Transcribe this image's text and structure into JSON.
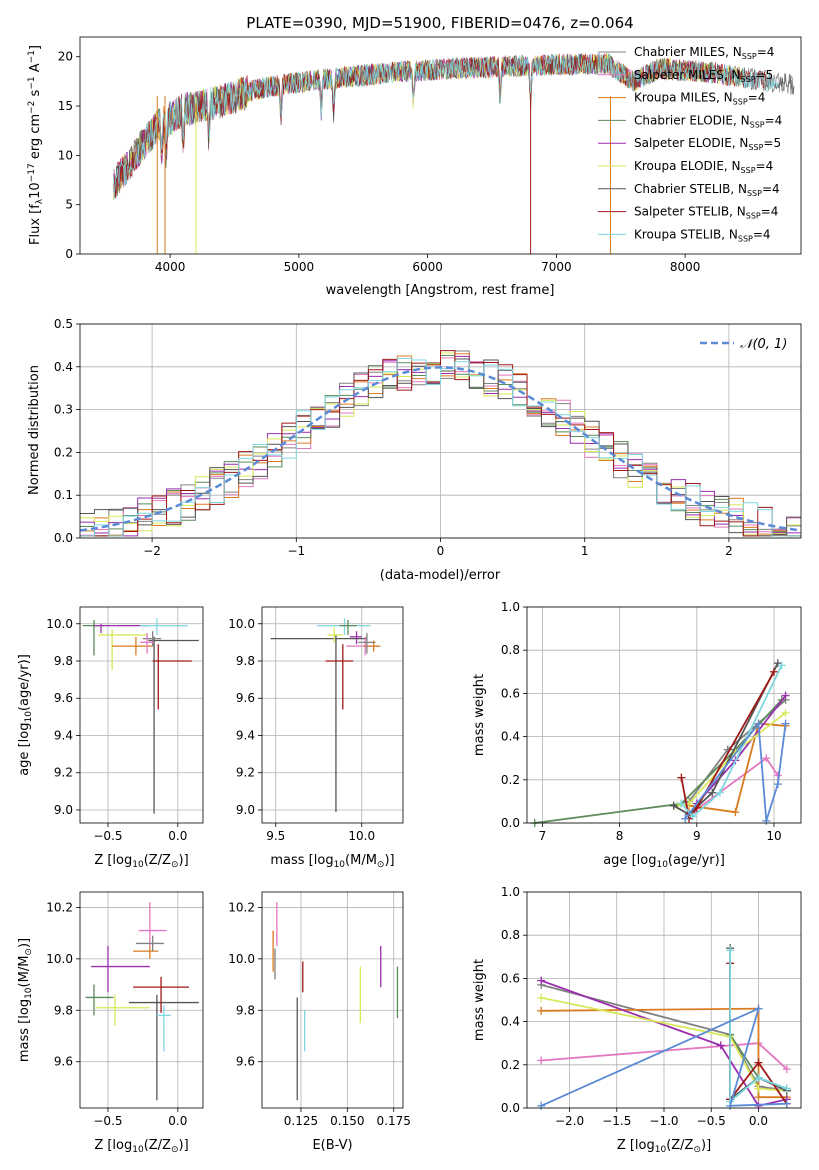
{
  "colors": [
    "#808080",
    "#e377c2",
    "#d97b20",
    "#5b8a5b",
    "#9b2fae",
    "#d9e85a",
    "#555555",
    "#a01818",
    "#7fd7e0"
  ],
  "chart_data": [
    {
      "id": "spectrum",
      "type": "line",
      "title": "PLATE=0390, MJD=51900, FIBERID=0476, z=0.064",
      "xlabel": "wavelength [Angstrom, rest frame]",
      "ylabel": "Flux [f",
      "ylabel_sub": "λ",
      "ylabel_rest": "10",
      "ylabel_sup": "−17",
      "ylabel_end": " erg cm",
      "ylabel_sup2": "−2",
      "ylabel_end2": " s",
      "ylabel_sup3": "−1",
      "ylabel_end3": " A",
      "ylabel_sup4": "−1",
      "ylabel_close": "]",
      "xlim": [
        3300,
        8900
      ],
      "ylim": [
        0,
        22
      ],
      "xticks": [
        4000,
        5000,
        6000,
        7000,
        8000
      ],
      "yticks": [
        0,
        5,
        10,
        15,
        20
      ],
      "continuum": [
        [
          3560,
          7.0
        ],
        [
          3700,
          9.5
        ],
        [
          3900,
          13.0
        ],
        [
          4100,
          14.6
        ],
        [
          4400,
          15.5
        ],
        [
          4700,
          16.8
        ],
        [
          5000,
          17.4
        ],
        [
          5400,
          18.0
        ],
        [
          5800,
          18.5
        ],
        [
          6200,
          18.8
        ],
        [
          6600,
          19.0
        ],
        [
          7000,
          19.2
        ],
        [
          7400,
          19.3
        ],
        [
          7600,
          17.5
        ],
        [
          7800,
          18.8
        ],
        [
          8200,
          18.4
        ],
        [
          8600,
          17.6
        ],
        [
          8850,
          17.2
        ]
      ],
      "absorption_lines": [
        3934,
        3969,
        4102,
        4300,
        4861,
        5175,
        5270,
        5890,
        6563,
        6800
      ],
      "legend": [
        {
          "label": "Chabrier MILES, N",
          "sub": "SSP",
          "val": "=4"
        },
        {
          "label": "Salpeter MILES, N",
          "sub": "SSP",
          "val": "=5"
        },
        {
          "label": "Kroupa MILES, N",
          "sub": "SSP",
          "val": "=4"
        },
        {
          "label": "Chabrier ELODIE, N",
          "sub": "SSP",
          "val": "=4"
        },
        {
          "label": "Salpeter ELODIE, N",
          "sub": "SSP",
          "val": "=5"
        },
        {
          "label": "Kroupa ELODIE, N",
          "sub": "SSP",
          "val": "=4"
        },
        {
          "label": "Chabrier STELIB, N",
          "sub": "SSP",
          "val": "=4"
        },
        {
          "label": "Salpeter STELIB, N",
          "sub": "SSP",
          "val": "=4"
        },
        {
          "label": "Kroupa STELIB, N",
          "sub": "SSP",
          "val": "=4"
        }
      ]
    },
    {
      "id": "residuals",
      "type": "histogram",
      "xlabel": "(data-model)/error",
      "ylabel": "Normed distribution",
      "xlim": [
        -2.5,
        2.5
      ],
      "ylim": [
        0,
        0.5
      ],
      "xticks": [
        -2,
        -1,
        0,
        1,
        2
      ],
      "yticks": [
        0.0,
        0.1,
        0.2,
        0.3,
        0.4,
        0.5
      ],
      "bin_width": 0.1,
      "legend": "𝒩(0, 1)",
      "grid": true
    },
    {
      "id": "age-vs-Z",
      "type": "errorbar",
      "xlabel": "Z [log",
      "xlabel_sub": "10",
      "xlabel_rest": "(Z/Z",
      "xlabel_sub2": "⊙",
      "xlabel_end": ")]",
      "ylabel": "age  [log",
      "ylabel_sub": "10",
      "ylabel_rest": "(age/yr)]",
      "xlim": [
        -0.7,
        0.18
      ],
      "ylim": [
        8.93,
        10.09
      ],
      "xticks": [
        -0.5,
        0.0
      ],
      "yticks": [
        9.0,
        9.2,
        9.4,
        9.6,
        9.8,
        10.0
      ],
      "points": [
        {
          "x": -0.6,
          "y": 9.99,
          "xerr": [
            0.08,
            0.07
          ],
          "yerr": [
            0.16,
            0.03
          ],
          "c": 3
        },
        {
          "x": -0.55,
          "y": 9.99,
          "xerr": [
            0.05,
            0.34
          ],
          "yerr": [
            0.04,
            0.01
          ],
          "c": 4
        },
        {
          "x": -0.47,
          "y": 9.94,
          "xerr": [
            0.1,
            0.25
          ],
          "yerr": [
            0.19,
            0.03
          ],
          "c": 5
        },
        {
          "x": -0.3,
          "y": 9.88,
          "xerr": [
            0.17,
            0.12
          ],
          "yerr": [
            0.05,
            0.05
          ],
          "c": 2
        },
        {
          "x": -0.17,
          "y": 9.91,
          "xerr": [
            0.04,
            0.32
          ],
          "yerr": [
            0.93,
            0.02
          ],
          "c": 6
        },
        {
          "x": -0.14,
          "y": 9.8,
          "xerr": [
            0.04,
            0.24
          ],
          "yerr": [
            0.26,
            0.09
          ],
          "c": 7
        },
        {
          "x": -0.15,
          "y": 9.99,
          "xerr": [
            0.12,
            0.22
          ],
          "yerr": [
            0.05,
            0.04
          ],
          "c": 8
        },
        {
          "x": -0.18,
          "y": 9.92,
          "xerr": [
            0.07,
            0.06
          ],
          "yerr": [
            0.04,
            0.04
          ],
          "c": 0
        },
        {
          "x": -0.22,
          "y": 9.9,
          "xerr": [
            0.05,
            0.05
          ],
          "yerr": [
            0.06,
            0.05
          ],
          "c": 1
        }
      ]
    },
    {
      "id": "age-vs-mass",
      "type": "errorbar",
      "xlabel": "mass [log",
      "xlabel_sub": "10",
      "xlabel_rest": "(M/M",
      "xlabel_sub2": "⊙",
      "xlabel_end": ")]",
      "xlim": [
        9.42,
        10.24
      ],
      "ylim": [
        8.93,
        10.09
      ],
      "xticks": [
        9.5,
        10.0
      ],
      "yticks": [
        9.0,
        9.2,
        9.4,
        9.6,
        9.8,
        10.0
      ],
      "points": [
        {
          "x": 9.85,
          "y": 9.92,
          "xerr": [
            0.38,
            0.18
          ],
          "yerr": [
            0.93,
            0.02
          ],
          "c": 6
        },
        {
          "x": 9.89,
          "y": 9.8,
          "xerr": [
            0.1,
            0.06
          ],
          "yerr": [
            0.26,
            0.09
          ],
          "c": 7
        },
        {
          "x": 9.9,
          "y": 9.99,
          "xerr": [
            0.16,
            0.15
          ],
          "yerr": [
            0.05,
            0.04
          ],
          "c": 8
        },
        {
          "x": 9.84,
          "y": 9.94,
          "xerr": [
            0.04,
            0.05
          ],
          "yerr": [
            0.04,
            0.04
          ],
          "c": 5
        },
        {
          "x": 9.92,
          "y": 9.99,
          "xerr": [
            0.05,
            0.05
          ],
          "yerr": [
            0.05,
            0.03
          ],
          "c": 3
        },
        {
          "x": 9.97,
          "y": 9.93,
          "xerr": [
            0.04,
            0.03
          ],
          "yerr": [
            0.04,
            0.03
          ],
          "c": 4
        },
        {
          "x": 10.02,
          "y": 9.88,
          "xerr": [
            0.11,
            0.08
          ],
          "yerr": [
            0.05,
            0.05
          ],
          "c": 1
        },
        {
          "x": 10.07,
          "y": 9.88,
          "xerr": [
            0.06,
            0.04
          ],
          "yerr": [
            0.03,
            0.03
          ],
          "c": 2
        },
        {
          "x": 10.03,
          "y": 9.9,
          "xerr": [
            0.05,
            0.05
          ],
          "yerr": [
            0.06,
            0.05
          ],
          "c": 0
        }
      ]
    },
    {
      "id": "weight-vs-age",
      "type": "line",
      "xlabel": "age  [log",
      "xlabel_sub": "10",
      "xlabel_rest": "(age/yr)]",
      "ylabel": "mass weight",
      "xlim": [
        6.8,
        10.35
      ],
      "ylim": [
        0,
        1
      ],
      "xticks": [
        7,
        8,
        9,
        10
      ],
      "yticks": [
        0.0,
        0.2,
        0.4,
        0.6,
        0.8,
        1.0
      ],
      "series": [
        {
          "c": 0,
          "x": [
            8.7,
            8.9,
            9.4,
            10.15
          ],
          "y": [
            0.08,
            0.1,
            0.34,
            0.57
          ]
        },
        {
          "c": 1,
          "x": [
            8.95,
            9.9,
            10.05
          ],
          "y": [
            0.05,
            0.3,
            0.22
          ]
        },
        {
          "c": 2,
          "x": [
            8.9,
            9.5,
            9.8,
            10.15
          ],
          "y": [
            0.08,
            0.05,
            0.46,
            0.45
          ]
        },
        {
          "c": 3,
          "x": [
            6.9,
            8.8,
            9.5,
            10.1
          ],
          "y": [
            0.0,
            0.09,
            0.34,
            0.57
          ]
        },
        {
          "c": 4,
          "x": [
            8.9,
            9.0,
            9.5,
            10.15
          ],
          "y": [
            0.04,
            0.09,
            0.29,
            0.59
          ]
        },
        {
          "c": 5,
          "x": [
            8.75,
            8.9,
            9.5,
            10.15
          ],
          "y": [
            0.08,
            0.09,
            0.33,
            0.51
          ]
        },
        {
          "c": 6,
          "x": [
            8.7,
            8.9,
            9.2,
            10.05
          ],
          "y": [
            0.08,
            0.04,
            0.14,
            0.74
          ]
        },
        {
          "c": 7,
          "x": [
            8.8,
            8.9,
            9.0,
            10.0
          ],
          "y": [
            0.21,
            0.02,
            0.07,
            0.7
          ]
        },
        {
          "c": 8,
          "x": [
            8.8,
            8.95,
            9.3,
            10.1
          ],
          "y": [
            0.09,
            0.03,
            0.14,
            0.73
          ]
        },
        {
          "c": 9,
          "x": [
            8.85,
            9.8,
            9.9,
            10.05,
            10.15
          ],
          "y": [
            0.02,
            0.46,
            0.01,
            0.18,
            0.46
          ]
        }
      ]
    },
    {
      "id": "mass-vs-Z",
      "type": "errorbar",
      "xlabel": "Z [log",
      "xlabel_sub": "10",
      "xlabel_rest": "(Z/Z",
      "xlabel_sub2": "⊙",
      "xlabel_end": ")]",
      "ylabel": "mass [log",
      "ylabel_sub": "10",
      "ylabel_rest": "(M/M",
      "ylabel_sub2": "⊙",
      "ylabel_end": ")]",
      "xlim": [
        -0.7,
        0.18
      ],
      "ylim": [
        9.42,
        10.26
      ],
      "xticks": [
        -0.5,
        0.0
      ],
      "yticks": [
        9.6,
        9.8,
        10.0,
        10.2
      ],
      "points": [
        {
          "x": -0.6,
          "y": 9.85,
          "xerr": [
            0.06,
            0.14
          ],
          "yerr": [
            0.07,
            0.05
          ],
          "c": 3
        },
        {
          "x": -0.5,
          "y": 9.97,
          "xerr": [
            0.12,
            0.3
          ],
          "yerr": [
            0.1,
            0.08
          ],
          "c": 4
        },
        {
          "x": -0.45,
          "y": 9.81,
          "xerr": [
            0.14,
            0.25
          ],
          "yerr": [
            0.07,
            0.05
          ],
          "c": 5
        },
        {
          "x": -0.2,
          "y": 10.03,
          "xerr": [
            0.12,
            0.06
          ],
          "yerr": [
            0.03,
            0.04
          ],
          "c": 2
        },
        {
          "x": -0.2,
          "y": 10.11,
          "xerr": [
            0.08,
            0.12
          ],
          "yerr": [
            0.06,
            0.11
          ],
          "c": 1
        },
        {
          "x": -0.18,
          "y": 10.06,
          "xerr": [
            0.12,
            0.08
          ],
          "yerr": [
            0.03,
            0.03
          ],
          "c": 0
        },
        {
          "x": -0.15,
          "y": 9.83,
          "xerr": [
            0.2,
            0.3
          ],
          "yerr": [
            0.38,
            0.03
          ],
          "c": 6
        },
        {
          "x": -0.12,
          "y": 9.89,
          "xerr": [
            0.2,
            0.2
          ],
          "yerr": [
            0.1,
            0.04
          ],
          "c": 7
        },
        {
          "x": -0.1,
          "y": 9.78,
          "xerr": [
            0.05,
            0.05
          ],
          "yerr": [
            0.14,
            0.04
          ],
          "c": 8
        }
      ]
    },
    {
      "id": "mass-vs-ebv",
      "type": "errorbar",
      "xlabel": "E(B-V)",
      "xlim": [
        0.104,
        0.18
      ],
      "ylim": [
        9.42,
        10.26
      ],
      "xticks": [
        0.125,
        0.15,
        0.175
      ],
      "yticks": [
        9.6,
        9.8,
        10.0,
        10.2
      ],
      "points": [
        {
          "x": 0.11,
          "y": 10.03,
          "xerr": [
            0,
            0
          ],
          "yerr": [
            0.08,
            0.08
          ],
          "c": 2
        },
        {
          "x": 0.112,
          "y": 10.11,
          "xerr": [
            0,
            0
          ],
          "yerr": [
            0.06,
            0.11
          ],
          "c": 1
        },
        {
          "x": 0.111,
          "y": 9.98,
          "xerr": [
            0,
            0
          ],
          "yerr": [
            0.06,
            0.06
          ],
          "c": 0
        },
        {
          "x": 0.123,
          "y": 9.7,
          "xerr": [
            0,
            0
          ],
          "yerr": [
            0.25,
            0.15
          ],
          "c": 6
        },
        {
          "x": 0.126,
          "y": 9.93,
          "xerr": [
            0,
            0
          ],
          "yerr": [
            0.06,
            0.06
          ],
          "c": 7
        },
        {
          "x": 0.127,
          "y": 9.72,
          "xerr": [
            0,
            0
          ],
          "yerr": [
            0.08,
            0.08
          ],
          "c": 8
        },
        {
          "x": 0.157,
          "y": 9.86,
          "xerr": [
            0,
            0
          ],
          "yerr": [
            0.11,
            0.11
          ],
          "c": 5
        },
        {
          "x": 0.168,
          "y": 9.97,
          "xerr": [
            0,
            0
          ],
          "yerr": [
            0.08,
            0.08
          ],
          "c": 4
        },
        {
          "x": 0.177,
          "y": 9.87,
          "xerr": [
            0,
            0
          ],
          "yerr": [
            0.1,
            0.1
          ],
          "c": 3
        }
      ]
    },
    {
      "id": "weight-vs-Z",
      "type": "line",
      "xlabel": "Z [log",
      "xlabel_sub": "10",
      "xlabel_rest": "(Z/Z",
      "xlabel_sub2": "⊙",
      "xlabel_end": ")]",
      "ylabel": "mass weight",
      "xlim": [
        -2.45,
        0.45
      ],
      "ylim": [
        0,
        1
      ],
      "xticks": [
        -2.0,
        -1.5,
        -1.0,
        -0.5,
        0.0
      ],
      "yticks": [
        0.0,
        0.2,
        0.4,
        0.6,
        0.8,
        1.0
      ],
      "series": [
        {
          "c": 0,
          "x": [
            -2.3,
            -0.3,
            0.0,
            0.3
          ],
          "y": [
            0.57,
            0.34,
            0.1,
            0.08
          ]
        },
        {
          "c": 1,
          "x": [
            -2.3,
            0.0,
            0.3
          ],
          "y": [
            0.22,
            0.3,
            0.18
          ]
        },
        {
          "c": 2,
          "x": [
            -2.3,
            0.0,
            0.0,
            0.3
          ],
          "y": [
            0.45,
            0.46,
            0.05,
            0.05
          ]
        },
        {
          "c": 3,
          "x": [
            -0.3,
            -0.3,
            0.0,
            0.3
          ],
          "y": [
            0.04,
            0.34,
            0.14,
            0.09
          ]
        },
        {
          "c": 4,
          "x": [
            -2.3,
            -0.4,
            0.0,
            0.3
          ],
          "y": [
            0.59,
            0.29,
            0.01,
            0.04
          ]
        },
        {
          "c": 5,
          "x": [
            -2.3,
            -0.3,
            0.0,
            0.3
          ],
          "y": [
            0.51,
            0.33,
            0.09,
            0.08
          ]
        },
        {
          "c": 6,
          "x": [
            -0.3,
            -0.3,
            0.0,
            0.3
          ],
          "y": [
            0.74,
            0.04,
            0.14,
            0.08
          ]
        },
        {
          "c": 7,
          "x": [
            -0.3,
            -0.3,
            0.0,
            0.3
          ],
          "y": [
            0.67,
            0.04,
            0.21,
            0.02
          ]
        },
        {
          "c": 8,
          "x": [
            -0.3,
            -0.3,
            0.0,
            0.3
          ],
          "y": [
            0.73,
            0.03,
            0.14,
            0.09
          ]
        },
        {
          "c": 9,
          "x": [
            -2.3,
            0.0,
            -0.3,
            0.3
          ],
          "y": [
            0.01,
            0.46,
            0.01,
            0.02
          ]
        }
      ]
    }
  ]
}
